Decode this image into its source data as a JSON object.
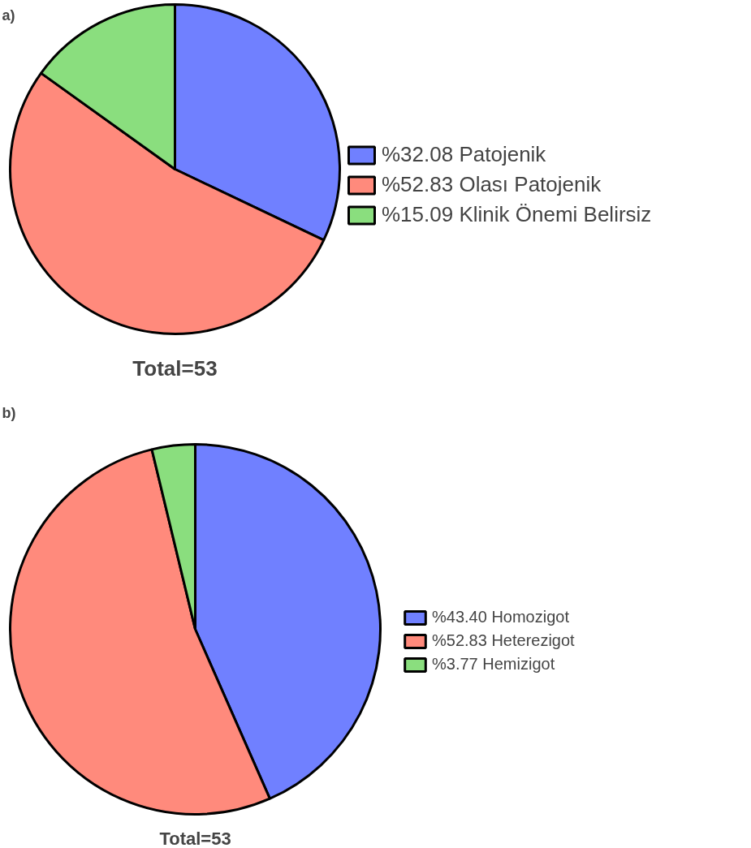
{
  "chart_data": [
    {
      "type": "pie",
      "title": "a)",
      "categories": [
        "%32.08 Patojenik",
        "%52.83 Olası Patojenik",
        "%15.09 Klinik Önemi Belirsiz"
      ],
      "values": [
        32.08,
        52.83,
        15.09
      ],
      "colors": [
        "#7080ff",
        "#ff8a7c",
        "#8ade7e"
      ],
      "legend": "right",
      "annotations": [
        "Total=53"
      ]
    },
    {
      "type": "pie",
      "title": "b)",
      "categories": [
        "%43.40 Homozigot",
        "%52.83 Heterezigot",
        "%3.77 Hemizigot"
      ],
      "values": [
        43.4,
        52.83,
        3.77
      ],
      "colors": [
        "#7080ff",
        "#ff8a7c",
        "#8ade7e"
      ],
      "legend": "right",
      "annotations": [
        "Total=53"
      ]
    }
  ]
}
